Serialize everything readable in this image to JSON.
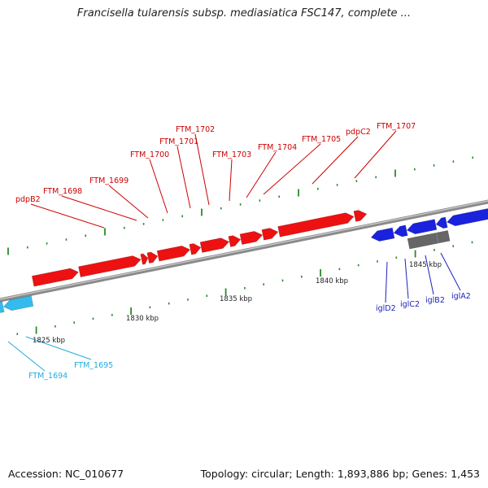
{
  "title": "Francisella tularensis subsp. mediasiatica FSC147, complete ...",
  "footer": {
    "accession": "Accession: NC_010677",
    "summary": "Topology: circular; Length: 1,893,886 bp; Genes: 1,453"
  },
  "colors": {
    "forward_gene": "#ee1111",
    "reverse_gene": "#1a22dd",
    "light_gene": "#33bbee",
    "gray_gene": "#666666",
    "tick": "#2a8a2a",
    "red_label": "#cc0000",
    "blue_label": "#1a22bb",
    "cyan_label": "#22aadd"
  },
  "scale_labels": [
    {
      "kbp": 1825,
      "text": "1825 kbp"
    },
    {
      "kbp": 1830,
      "text": "1830 kbp"
    },
    {
      "kbp": 1835,
      "text": "1835 kbp"
    },
    {
      "kbp": 1840,
      "text": "1840 kbp"
    },
    {
      "kbp": 1845,
      "text": "1845 kbp"
    }
  ],
  "genes": [
    {
      "name": "FTM_1694",
      "strand": "reverse",
      "group": "light"
    },
    {
      "name": "FTM_1695",
      "strand": "reverse",
      "group": "light"
    },
    {
      "name": "pdpB2",
      "strand": "forward",
      "group": "red"
    },
    {
      "name": "FTM_1698",
      "strand": "forward",
      "group": "red"
    },
    {
      "name": "FTM_1699",
      "strand": "forward",
      "group": "red"
    },
    {
      "name": "FTM_1700",
      "strand": "forward",
      "group": "red"
    },
    {
      "name": "FTM_1701",
      "strand": "forward",
      "group": "red"
    },
    {
      "name": "FTM_1702",
      "strand": "forward",
      "group": "red"
    },
    {
      "name": "FTM_1703",
      "strand": "forward",
      "group": "red"
    },
    {
      "name": "FTM_1704",
      "strand": "forward",
      "group": "red"
    },
    {
      "name": "FTM_1705",
      "strand": "forward",
      "group": "red"
    },
    {
      "name": "pdpC2",
      "strand": "forward",
      "group": "red"
    },
    {
      "name": "FTM_1707",
      "strand": "forward",
      "group": "red"
    },
    {
      "name": "iglD2",
      "strand": "reverse",
      "group": "blue"
    },
    {
      "name": "iglC2",
      "strand": "reverse",
      "group": "blue"
    },
    {
      "name": "iglB2",
      "strand": "reverse",
      "group": "blue"
    },
    {
      "name": "iglA2",
      "strand": "reverse",
      "group": "blue"
    }
  ]
}
